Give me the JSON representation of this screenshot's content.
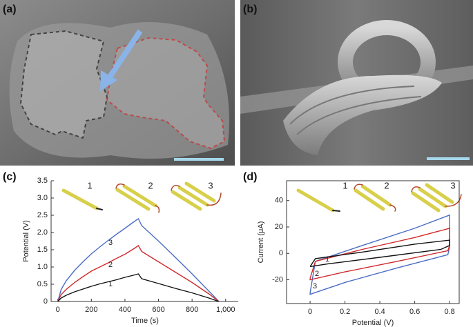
{
  "panel_labels": [
    "(a)",
    "(b)",
    "(c)",
    "(d)"
  ],
  "chart_data": [
    {
      "type": "line",
      "xlabel": "Time (s)",
      "ylabel": "Potential (V)",
      "x": [
        0,
        20,
        50,
        100,
        150,
        200,
        250,
        300,
        350,
        400,
        450,
        480,
        500,
        600,
        700,
        800,
        900,
        960
      ],
      "series": [
        {
          "name": "3",
          "color": "#4a6cc4",
          "values": [
            0,
            0.35,
            0.6,
            0.9,
            1.15,
            1.38,
            1.58,
            1.77,
            1.95,
            2.12,
            2.3,
            2.4,
            2.2,
            1.75,
            1.28,
            0.8,
            0.3,
            0
          ]
        },
        {
          "name": "2",
          "color": "#d02a2a",
          "values": [
            0,
            0.2,
            0.35,
            0.55,
            0.72,
            0.88,
            1.0,
            1.12,
            1.25,
            1.37,
            1.52,
            1.62,
            1.45,
            1.15,
            0.85,
            0.55,
            0.22,
            0
          ]
        },
        {
          "name": "1",
          "color": "#111111",
          "values": [
            0,
            0.1,
            0.18,
            0.28,
            0.36,
            0.44,
            0.51,
            0.57,
            0.63,
            0.7,
            0.76,
            0.8,
            0.66,
            0.52,
            0.38,
            0.25,
            0.1,
            0
          ]
        }
      ],
      "inset_labels": [
        "1",
        "2",
        "3"
      ],
      "xlim": [
        -40,
        1075
      ],
      "ylim": [
        0,
        3.5
      ],
      "xticks": [
        0,
        200,
        400,
        600,
        800,
        {
          "value": 1000,
          "label": "1,000"
        }
      ],
      "yticks": [
        0,
        0.5,
        {
          "value": 1,
          "label": "1.0"
        },
        1.5,
        {
          "value": 2,
          "label": "2.0"
        },
        2.5,
        {
          "value": 3,
          "label": "3.0"
        },
        3.5
      ],
      "grid": false,
      "frame": false
    },
    {
      "type": "line",
      "xlabel": "Potential (V)",
      "ylabel": "Current (μA)",
      "series": [
        {
          "name": "3",
          "color": "#4a6cc4",
          "x": [
            0,
            0.03,
            0.3,
            0.6,
            0.8,
            0.8,
            0.79,
            0.5,
            0.2,
            0,
            0
          ],
          "values": [
            -30,
            -6,
            6,
            19,
            29,
            5,
            -1,
            -11,
            -22,
            -31,
            -30
          ]
        },
        {
          "name": "2",
          "color": "#d02a2a",
          "x": [
            0,
            0.03,
            0.3,
            0.6,
            0.8,
            0.8,
            0.79,
            0.5,
            0.2,
            0,
            0
          ],
          "values": [
            -19,
            -6,
            3,
            12,
            19,
            6,
            2,
            -6,
            -14,
            -20,
            -19
          ]
        },
        {
          "name": "1",
          "color": "#111111",
          "x": [
            0,
            0.03,
            0.3,
            0.6,
            0.8,
            0.8,
            0.75,
            0.4,
            0.1,
            0,
            0
          ],
          "values": [
            -10,
            -4,
            1,
            7,
            10,
            6,
            3,
            -3,
            -8,
            -10,
            -10
          ]
        }
      ],
      "inset_labels": [
        "1",
        "2",
        "3"
      ],
      "xlim": [
        -0.135,
        0.855
      ],
      "ylim": [
        -38,
        55
      ],
      "xticks": [
        0,
        0.2,
        0.4,
        0.6,
        0.8
      ],
      "yticks": [
        -20,
        0,
        20,
        40
      ],
      "grid": false,
      "frame": true
    }
  ]
}
